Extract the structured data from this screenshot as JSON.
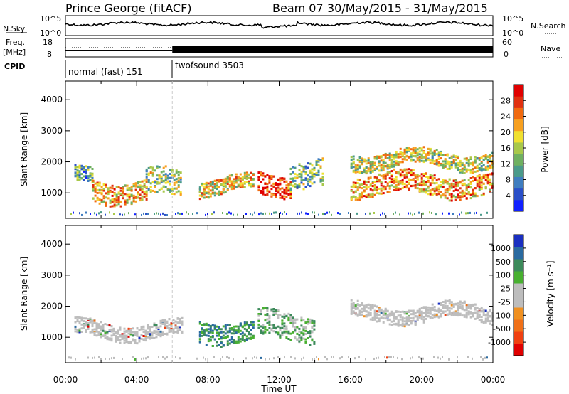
{
  "header": {
    "title": "Prince George (fitACF)",
    "beam": "Beam 07",
    "dates": "30/May/2015 - 31/May/2015"
  },
  "top_panels": {
    "nsky_label": "N.Sky",
    "nsky_ticks": [
      "10^5",
      "10^0"
    ],
    "nsearch_label": "N.Search",
    "nsearch_ticks": [
      "10^5",
      "10^0"
    ],
    "freq_label_1": "Freq.",
    "freq_label_2": "[MHz]",
    "freq_ticks": [
      "18",
      "8"
    ],
    "nave_label": "Nave",
    "nave_ticks": [
      "60",
      "0"
    ],
    "cpid_label": "CPID",
    "cpid_modes": [
      {
        "label": "normal (fast) 151",
        "start_hour": 0,
        "end_hour": 6
      },
      {
        "label": "twofsound 3503",
        "start_hour": 6,
        "end_hour": 24
      }
    ]
  },
  "chart_data": [
    {
      "type": "heatmap",
      "name": "power",
      "xlabel": "Time UT",
      "ylabel": "Slant Range [km]",
      "xlim": [
        0,
        24
      ],
      "ylim": [
        180,
        4600
      ],
      "yticks": [
        "1000",
        "2000",
        "3000",
        "4000"
      ],
      "colorbar": {
        "label": "Power [dB]",
        "ticks": [
          "4",
          "8",
          "12",
          "16",
          "20",
          "24",
          "28"
        ],
        "colors": [
          "#1020ff",
          "#2a4fc8",
          "#3f7dbf",
          "#4a9a8a",
          "#6fb060",
          "#a8c84a",
          "#f0e030",
          "#f7a020",
          "#f06a10",
          "#e03010",
          "#e00000"
        ]
      },
      "features": [
        {
          "start_hour": 0.5,
          "end_hour": 1.5,
          "range_km": 1500,
          "level_db": 10
        },
        {
          "start_hour": 1.5,
          "end_hour": 4.5,
          "range_km": 1100,
          "level_db": 20
        },
        {
          "start_hour": 4.5,
          "end_hour": 6.5,
          "range_km": 1300,
          "level_db": 14
        },
        {
          "start_hour": 7.5,
          "end_hour": 10.5,
          "range_km": 1250,
          "level_db": 18
        },
        {
          "start_hour": 10.8,
          "end_hour": 12.6,
          "range_km": 1350,
          "level_db": 28
        },
        {
          "start_hour": 12.6,
          "end_hour": 14.5,
          "range_km": 1550,
          "level_db": 12
        },
        {
          "start_hour": 16,
          "end_hour": 24,
          "range_km": 2100,
          "level_db": 16
        },
        {
          "start_hour": 16,
          "end_hour": 24,
          "range_km": 1300,
          "level_db": 22
        }
      ]
    },
    {
      "type": "heatmap",
      "name": "velocity",
      "xlabel": "Time UT",
      "ylabel": "Slant Range [km]",
      "xlim": [
        0,
        24
      ],
      "ylim": [
        180,
        4600
      ],
      "xticks": [
        "00:00",
        "04:00",
        "08:00",
        "12:00",
        "16:00",
        "20:00",
        "00:00"
      ],
      "yticks": [
        "1000",
        "2000",
        "3000",
        "4000"
      ],
      "colorbar": {
        "label": "Velocity [m s⁻¹]",
        "ticks": [
          "1000",
          "500",
          "100",
          "25",
          "-25",
          "-100",
          "-500",
          "-1000"
        ],
        "colors": [
          "#1a2fc0",
          "#2a6aa0",
          "#3c8a5a",
          "#48b030",
          "#bdbdbd",
          "#bdbdbd",
          "#f09020",
          "#f07018",
          "#f04010",
          "#e00000"
        ]
      },
      "features": [
        {
          "start_hour": 0.5,
          "end_hour": 6.5,
          "range_km": 1250,
          "velocity": 0
        },
        {
          "start_hour": 7.5,
          "end_hour": 10.5,
          "range_km": 1250,
          "velocity": 150
        },
        {
          "start_hour": 10.8,
          "end_hour": 14,
          "range_km": 1400,
          "velocity": 300
        },
        {
          "start_hour": 16,
          "end_hour": 24,
          "range_km": 1800,
          "velocity": 0
        }
      ]
    }
  ]
}
